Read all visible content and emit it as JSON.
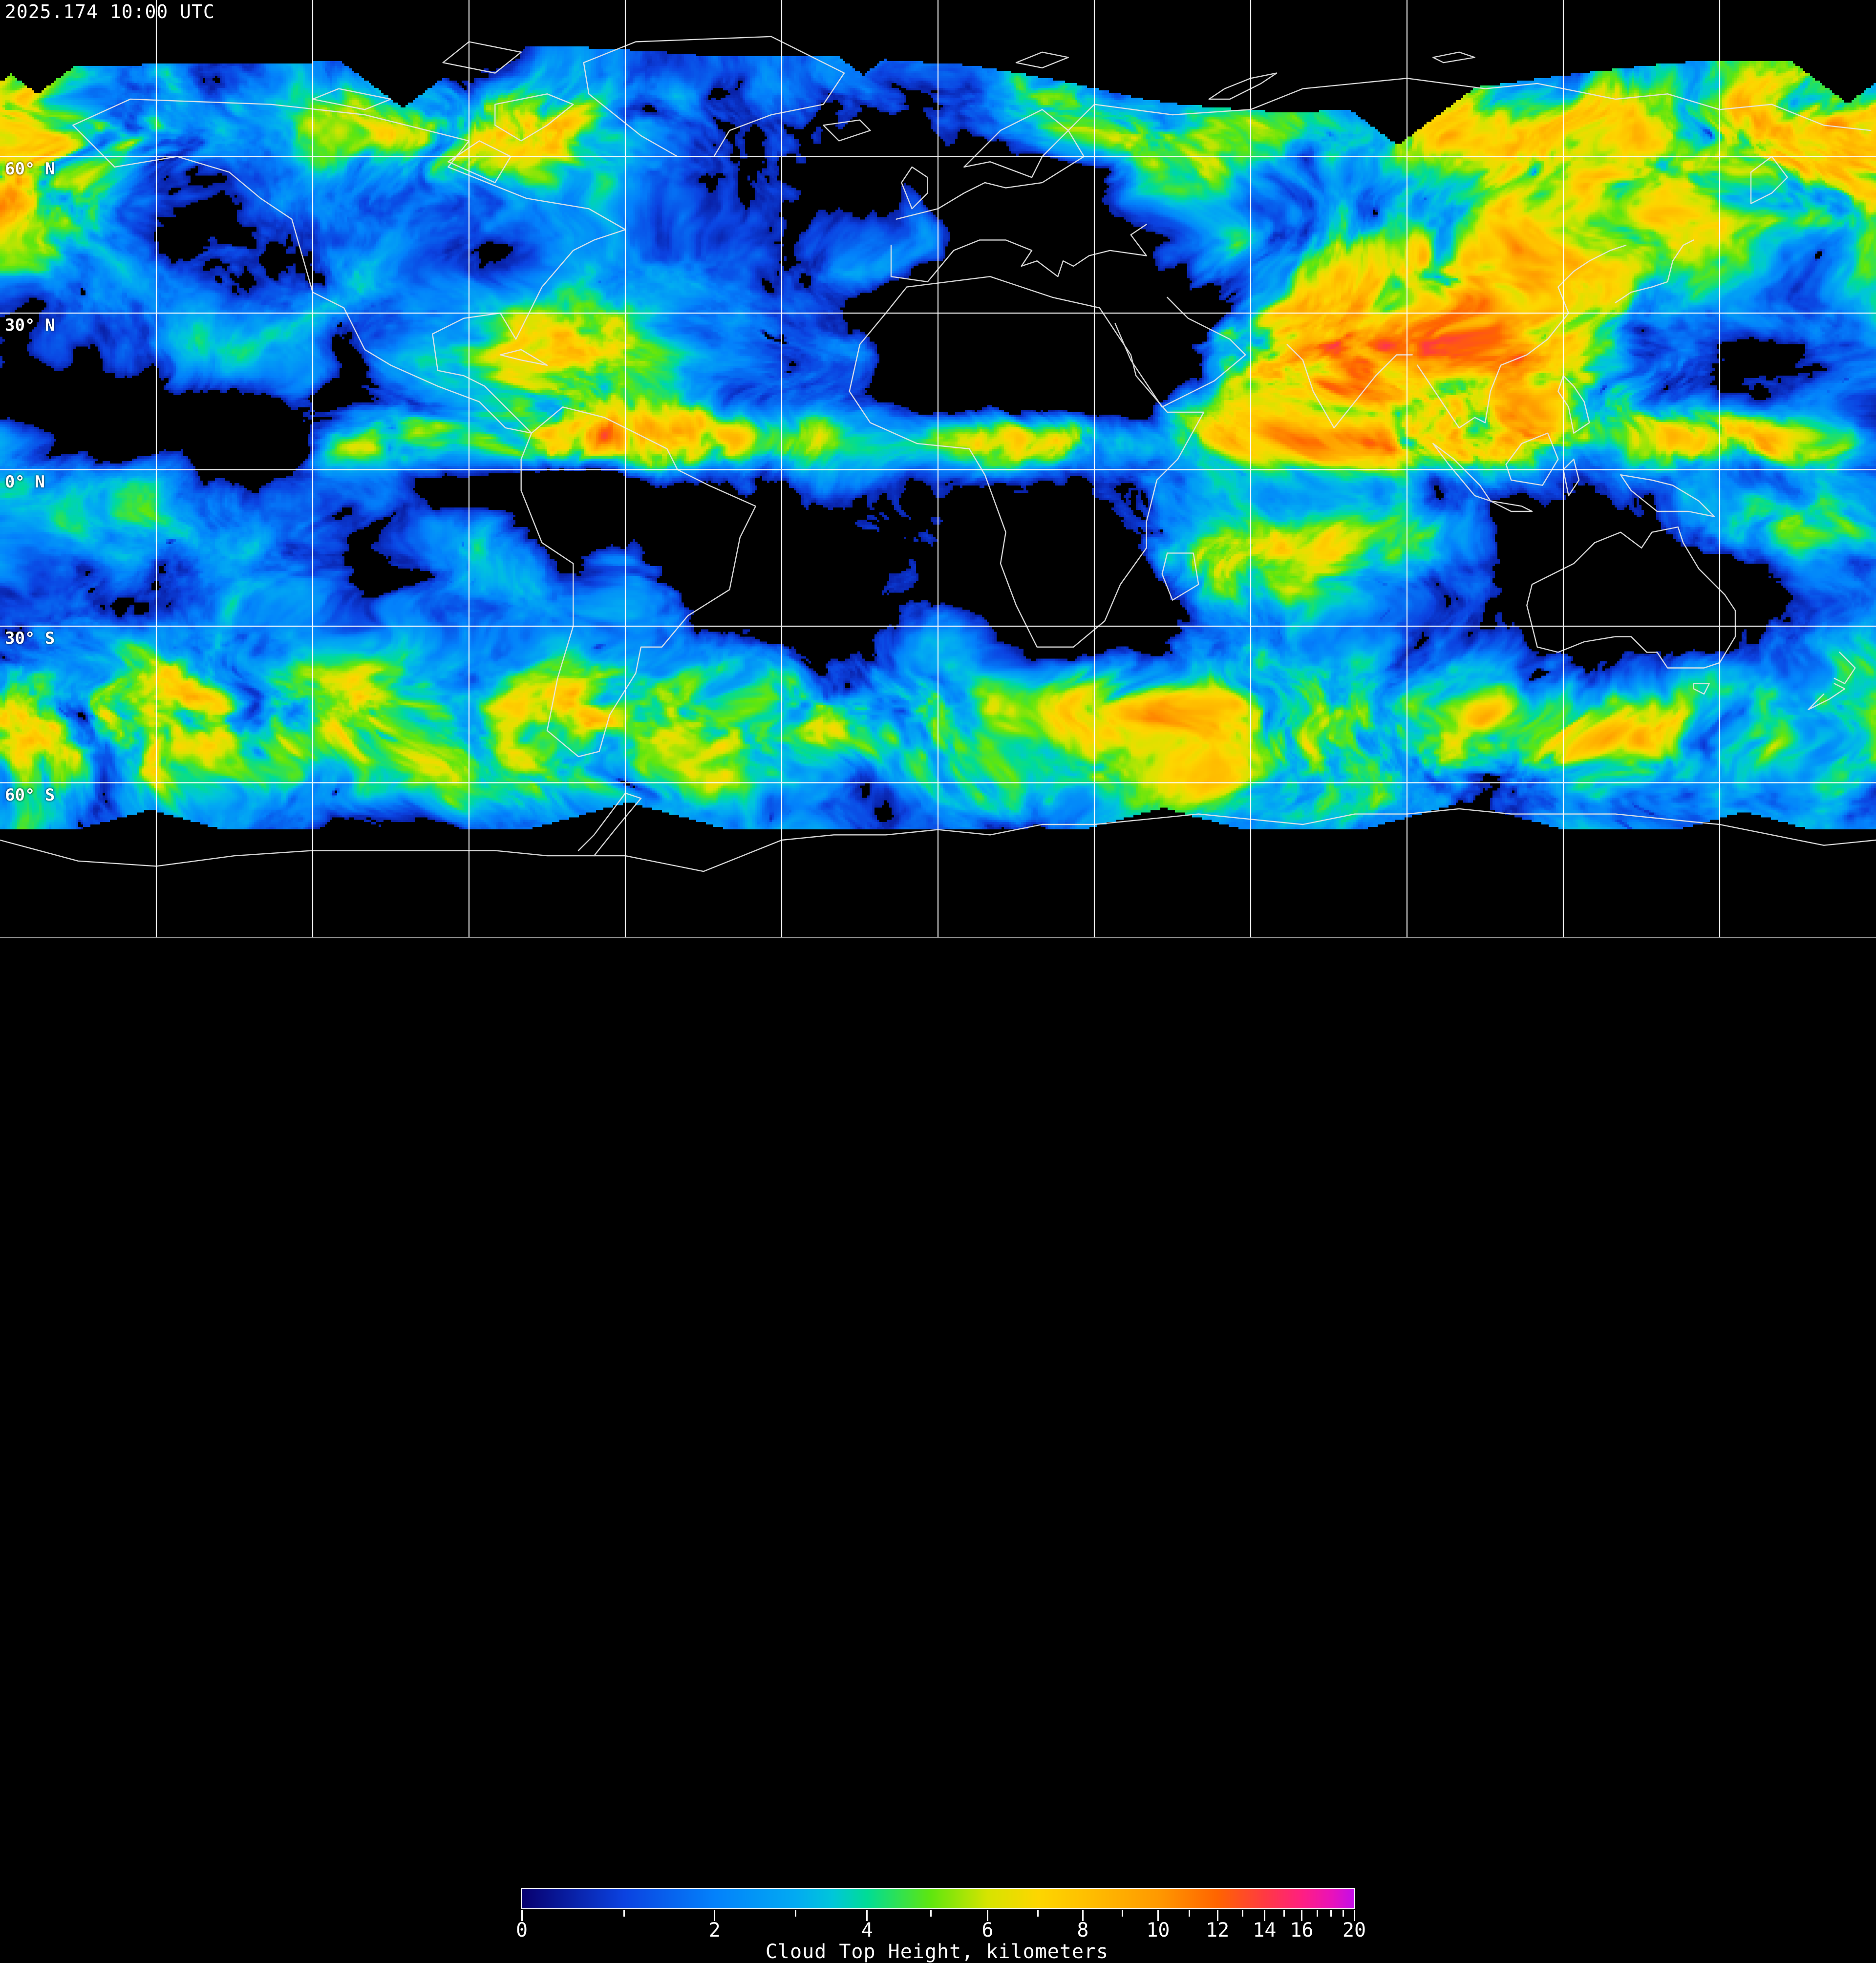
{
  "header": {
    "timestamp": "2025.174 10:00 UTC"
  },
  "map": {
    "latitude_labels": [
      {
        "text": "60° N",
        "lat_deg": 60
      },
      {
        "text": "30° N",
        "lat_deg": 30
      },
      {
        "text": "0° N",
        "lat_deg": 0
      },
      {
        "text": "30° S",
        "lat_deg": -30
      },
      {
        "text": "60° S",
        "lat_deg": -60
      }
    ],
    "graticule": {
      "lon_spacing_deg": 30,
      "lat_spacing_deg": 30,
      "line_color": "#ffffff"
    },
    "coastline_color": "#e6e6e6",
    "no_data_color": "#000000",
    "frame_line_color": "#9c9c9c"
  },
  "colorbar": {
    "title": "Cloud Top Height, kilometers",
    "min_km": 0,
    "max_km": 20,
    "major_ticks": [
      0,
      2,
      4,
      6,
      8,
      10,
      12,
      14,
      16,
      20
    ],
    "minor_ticks": [
      1,
      3,
      5,
      7,
      9,
      11,
      13,
      15,
      17,
      18,
      19
    ],
    "tick_color": "#ffffff",
    "border_color": "#ffffff",
    "colormap": [
      {
        "value": 0,
        "color": "#07006e"
      },
      {
        "value": 1,
        "color": "#0b42e0"
      },
      {
        "value": 2,
        "color": "#0381fb"
      },
      {
        "value": 3,
        "color": "#02aaf2"
      },
      {
        "value": 3.5,
        "color": "#00c6da"
      },
      {
        "value": 4,
        "color": "#00dc96"
      },
      {
        "value": 5,
        "color": "#5fe60e"
      },
      {
        "value": 6,
        "color": "#d6e400"
      },
      {
        "value": 7,
        "color": "#fdd600"
      },
      {
        "value": 8,
        "color": "#ffc100"
      },
      {
        "value": 10,
        "color": "#ff9900"
      },
      {
        "value": 12,
        "color": "#ff6400"
      },
      {
        "value": 14,
        "color": "#ff3a42"
      },
      {
        "value": 16,
        "color": "#ff1f80"
      },
      {
        "value": 18,
        "color": "#ea12b8"
      },
      {
        "value": 20,
        "color": "#c40de9"
      }
    ]
  }
}
